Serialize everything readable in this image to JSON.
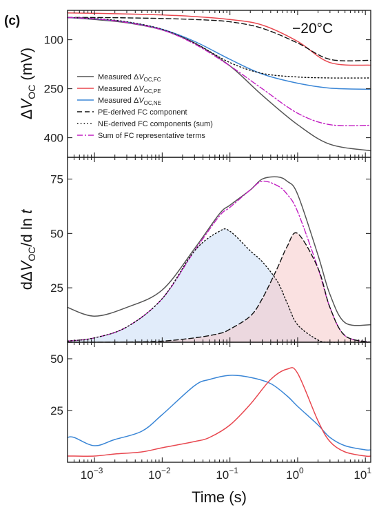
{
  "figure": {
    "panel_letter": "(c)",
    "temperature_label": "−20°C"
  },
  "colors": {
    "measured_fc": "#555555",
    "measured_pe": "#e8474f",
    "measured_ne": "#3a86d6",
    "pe_derived": "#111111",
    "ne_derived": "#111111",
    "sum_fc": "#c21fc2",
    "ne_fill": "#c9ddf5",
    "pe_fill": "#f5c9c9"
  },
  "chart_data": [
    {
      "type": "line",
      "panel": "top",
      "ylabel_parts": [
        "Δ",
        "V",
        "OC",
        " (mV)"
      ],
      "x_scale": "log",
      "xlim": [
        0.0004,
        12
      ],
      "ylim": [
        460,
        10
      ],
      "y_inverted": true,
      "yticks": [
        100,
        250,
        400
      ],
      "ytick_labels": [
        "100",
        "250",
        "400"
      ],
      "legend_position": "left",
      "legend": [
        {
          "prefix": "Measured Δ",
          "v": "V",
          "sub": "OC,FC",
          "suffix": "",
          "color_key": "measured_fc",
          "dash": "solid"
        },
        {
          "prefix": "Measured Δ",
          "v": "V",
          "sub": "OC,PE",
          "suffix": "",
          "color_key": "measured_pe",
          "dash": "solid"
        },
        {
          "prefix": "Measured Δ",
          "v": "V",
          "sub": "OC,NE",
          "suffix": "",
          "color_key": "measured_ne",
          "dash": "solid"
        },
        {
          "prefix": "PE-derived FC component",
          "v": "",
          "sub": "",
          "suffix": "",
          "color_key": "pe_derived",
          "dash": "dashed"
        },
        {
          "prefix": "NE-derived FC components (sum)",
          "v": "",
          "sub": "",
          "suffix": "",
          "color_key": "ne_derived",
          "dash": "dotted"
        },
        {
          "prefix": "Sum of FC representative terms",
          "v": "",
          "sub": "",
          "suffix": "",
          "color_key": "sum_fc",
          "dash": "dashdot"
        }
      ],
      "x": [
        0.0004,
        0.001,
        0.003,
        0.01,
        0.03,
        0.1,
        0.3,
        1,
        3,
        12
      ],
      "series": [
        {
          "key": "measured_fc",
          "style": "solid",
          "values": [
            32,
            38,
            48,
            70,
            110,
            180,
            270,
            360,
            420,
            440
          ]
        },
        {
          "key": "measured_pe",
          "style": "solid",
          "values": [
            18,
            19,
            21,
            24,
            29,
            38,
            55,
            105,
            170,
            178
          ]
        },
        {
          "key": "measured_ne",
          "style": "solid",
          "values": [
            32,
            36,
            46,
            68,
            105,
            160,
            205,
            233,
            248,
            252
          ]
        },
        {
          "key": "pe_derived",
          "style": "dashed",
          "values": [
            32,
            32,
            33,
            35,
            38,
            45,
            65,
            110,
            160,
            163
          ]
        },
        {
          "key": "ne_derived",
          "style": "dotted",
          "values": [
            32,
            35,
            45,
            68,
            110,
            170,
            203,
            214,
            217,
            217
          ]
        },
        {
          "key": "sum_fc",
          "style": "dashdot",
          "values": [
            32,
            36,
            47,
            70,
            113,
            180,
            250,
            325,
            360,
            362
          ]
        }
      ]
    },
    {
      "type": "area",
      "panel": "middle",
      "ylabel_parts": [
        "dΔ",
        "V",
        "OC",
        "/d ln ",
        "t"
      ],
      "x_scale": "log",
      "xlim": [
        0.0004,
        12
      ],
      "ylim": [
        0,
        85
      ],
      "yticks": [
        25,
        50,
        75
      ],
      "ytick_labels": [
        "25",
        "50",
        "75"
      ],
      "x": [
        0.0004,
        0.001,
        0.003,
        0.01,
        0.03,
        0.07,
        0.1,
        0.2,
        0.3,
        0.5,
        0.7,
        1,
        2,
        3,
        5,
        12
      ],
      "series": [
        {
          "key": "measured_fc",
          "style": "solid",
          "values": [
            16,
            12,
            16,
            24,
            43,
            59,
            63,
            70,
            75,
            76,
            74,
            68,
            40,
            22,
            9,
            8
          ]
        },
        {
          "key": "sum_fc",
          "style": "dashdot",
          "values": [
            0.5,
            2,
            7,
            20,
            42,
            58,
            62,
            70,
            74,
            72,
            68,
            60,
            34,
            16,
            3,
            0
          ]
        },
        {
          "key": "ne_derived",
          "style": "dotted",
          "values": [
            0.5,
            2,
            7,
            20,
            42,
            51,
            51,
            42,
            37,
            28,
            18,
            8,
            1,
            0,
            0,
            0
          ]
        },
        {
          "key": "pe_derived",
          "style": "dashed",
          "values": [
            0,
            0,
            0.1,
            0.5,
            2,
            4,
            6,
            12,
            20,
            34,
            44,
            50,
            34,
            16,
            3,
            0
          ]
        }
      ]
    },
    {
      "type": "line",
      "panel": "bottom",
      "x_scale": "log",
      "xlim": [
        0.0004,
        12
      ],
      "ylim": [
        0,
        58
      ],
      "yticks": [
        25,
        50
      ],
      "ytick_labels": [
        "25",
        "50"
      ],
      "xticks": [
        0.001,
        0.01,
        0.1,
        1,
        10
      ],
      "xtick_labels": [
        {
          "base": "10",
          "exp": "−3"
        },
        {
          "base": "10",
          "exp": "−2"
        },
        {
          "base": "10",
          "exp": "−1"
        },
        {
          "base": "10",
          "exp": "0"
        },
        {
          "base": "10",
          "exp": "1"
        }
      ],
      "xlabel": "Time (s)",
      "x": [
        0.0004,
        0.0005,
        0.001,
        0.002,
        0.005,
        0.01,
        0.03,
        0.05,
        0.1,
        0.2,
        0.4,
        0.7,
        1,
        2,
        3,
        5,
        10,
        12
      ],
      "series": [
        {
          "key": "measured_ne",
          "style": "solid",
          "values": [
            12,
            12,
            8,
            11,
            15,
            23,
            37,
            40,
            42,
            41,
            38,
            32,
            27,
            18,
            12,
            8,
            6,
            6
          ]
        },
        {
          "key": "measured_pe",
          "style": "solid",
          "values": [
            3,
            3,
            3,
            4,
            5,
            7,
            10,
            12,
            18,
            28,
            40,
            45,
            43,
            20,
            10,
            5,
            3,
            3
          ]
        }
      ]
    }
  ]
}
